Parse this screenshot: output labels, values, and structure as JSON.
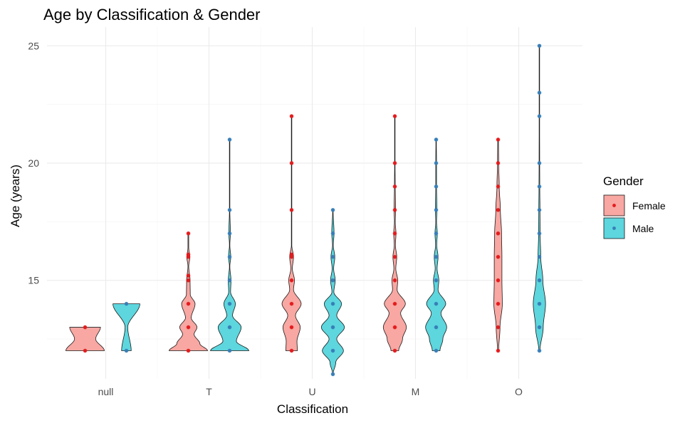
{
  "chart_data": {
    "type": "violin",
    "title": "Age by Classification & Gender",
    "xlabel": "Classification",
    "ylabel": "Age (years)",
    "categories": [
      "null",
      "T",
      "U",
      "M",
      "O"
    ],
    "y_ticks": [
      15,
      20,
      25
    ],
    "ylim": [
      10.8,
      25.8
    ],
    "grid": true,
    "legend": {
      "title": "Gender",
      "position": "right",
      "entries": [
        {
          "name": "Female",
          "fill": "#F8A7A2",
          "point": "#E41A1C"
        },
        {
          "name": "Male",
          "fill": "#5DD6DE",
          "point": "#377EB8"
        }
      ]
    },
    "series": [
      {
        "name": "Female",
        "groups": [
          {
            "category": "null",
            "ages": [
              12,
              13
            ],
            "density": [
              [
                12,
                1.0
              ],
              [
                12.5,
                0.55
              ],
              [
                13,
                0.8
              ]
            ]
          },
          {
            "category": "T",
            "ages": [
              12,
              13,
              14,
              15,
              15.2,
              16,
              16.1,
              17
            ],
            "density": [
              [
                12,
                1.0
              ],
              [
                12.3,
                0.6
              ],
              [
                12.7,
                0.3
              ],
              [
                13,
                0.45
              ],
              [
                13.4,
                0.15
              ],
              [
                14,
                0.35
              ],
              [
                14.4,
                0.1
              ],
              [
                15,
                0.09
              ],
              [
                15.6,
                0.02
              ],
              [
                16,
                0.08
              ],
              [
                16.4,
                0.02
              ],
              [
                17,
                0.02
              ]
            ]
          },
          {
            "category": "U",
            "ages": [
              12,
              13,
              14,
              15,
              16,
              16.1,
              18,
              20,
              22
            ],
            "density": [
              [
                12,
                0.3
              ],
              [
                12.4,
                0.28
              ],
              [
                13,
                0.45
              ],
              [
                13.5,
                0.2
              ],
              [
                14,
                0.5
              ],
              [
                14.6,
                0.1
              ],
              [
                15,
                0.15
              ],
              [
                15.5,
                0.04
              ],
              [
                16,
                0.1
              ],
              [
                16.5,
                0.01
              ],
              [
                18,
                0.01
              ],
              [
                20,
                0.01
              ],
              [
                22,
                0.01
              ]
            ]
          },
          {
            "category": "M",
            "ages": [
              12,
              13,
              14,
              15,
              16,
              17,
              18,
              19,
              20,
              22
            ],
            "density": [
              [
                12,
                0.2
              ],
              [
                12.5,
                0.4
              ],
              [
                13,
                0.6
              ],
              [
                13.6,
                0.3
              ],
              [
                14,
                0.55
              ],
              [
                14.6,
                0.12
              ],
              [
                15,
                0.15
              ],
              [
                15.5,
                0.05
              ],
              [
                16,
                0.1
              ],
              [
                16.5,
                0.03
              ],
              [
                17,
                0.06
              ],
              [
                17.5,
                0.02
              ],
              [
                18,
                0.04
              ],
              [
                19,
                0.02
              ],
              [
                20,
                0.01
              ],
              [
                22,
                0.01
              ]
            ]
          },
          {
            "category": "O",
            "ages": [
              12,
              13,
              14,
              15,
              16,
              17,
              18,
              19,
              20,
              21
            ],
            "density": [
              [
                12,
                0.03
              ],
              [
                13,
                0.1
              ],
              [
                14,
                0.22
              ],
              [
                15,
                0.2
              ],
              [
                16,
                0.2
              ],
              [
                17,
                0.18
              ],
              [
                18,
                0.12
              ],
              [
                19,
                0.06
              ],
              [
                20,
                0.03
              ],
              [
                21,
                0.02
              ]
            ]
          }
        ]
      },
      {
        "name": "Male",
        "groups": [
          {
            "category": "null",
            "ages": [
              12,
              14
            ],
            "density": [
              [
                12,
                0.25
              ],
              [
                13,
                0.07
              ],
              [
                14,
                0.7
              ]
            ]
          },
          {
            "category": "T",
            "ages": [
              12,
              13,
              14,
              15,
              16,
              17,
              18,
              21
            ],
            "density": [
              [
                12,
                1.0
              ],
              [
                12.4,
                0.35
              ],
              [
                13,
                0.6
              ],
              [
                13.5,
                0.15
              ],
              [
                14,
                0.3
              ],
              [
                14.5,
                0.05
              ],
              [
                15,
                0.07
              ],
              [
                15.6,
                0.01
              ],
              [
                16,
                0.06
              ],
              [
                16.5,
                0.01
              ],
              [
                17,
                0.04
              ],
              [
                18,
                0.01
              ],
              [
                21,
                0.01
              ]
            ]
          },
          {
            "category": "U",
            "ages": [
              11,
              12,
              13,
              14,
              15,
              16,
              17,
              18
            ],
            "density": [
              [
                11,
                0.01
              ],
              [
                11.5,
                0.15
              ],
              [
                12,
                0.55
              ],
              [
                12.5,
                0.2
              ],
              [
                13,
                0.6
              ],
              [
                13.5,
                0.2
              ],
              [
                14,
                0.45
              ],
              [
                14.5,
                0.05
              ],
              [
                15,
                0.12
              ],
              [
                15.5,
                0.04
              ],
              [
                16,
                0.1
              ],
              [
                16.5,
                0.02
              ],
              [
                17,
                0.06
              ],
              [
                18,
                0.01
              ]
            ]
          },
          {
            "category": "M",
            "ages": [
              12,
              13,
              14,
              15,
              16,
              17,
              18,
              19,
              20,
              21
            ],
            "density": [
              [
                12,
                0.2
              ],
              [
                12.5,
                0.35
              ],
              [
                13,
                0.55
              ],
              [
                13.6,
                0.25
              ],
              [
                14,
                0.5
              ],
              [
                14.6,
                0.1
              ],
              [
                15,
                0.14
              ],
              [
                15.5,
                0.05
              ],
              [
                16,
                0.1
              ],
              [
                16.5,
                0.03
              ],
              [
                17,
                0.06
              ],
              [
                17.5,
                0.02
              ],
              [
                18,
                0.04
              ],
              [
                19,
                0.02
              ],
              [
                20,
                0.02
              ],
              [
                21,
                0.01
              ]
            ]
          },
          {
            "category": "O",
            "ages": [
              12,
              13,
              14,
              15,
              16,
              17,
              18,
              19,
              20,
              22,
              23,
              25
            ],
            "density": [
              [
                12,
                0.03
              ],
              [
                13,
                0.2
              ],
              [
                14,
                0.32
              ],
              [
                15,
                0.18
              ],
              [
                16,
                0.07
              ],
              [
                17,
                0.04
              ],
              [
                18,
                0.03
              ],
              [
                19,
                0.02
              ],
              [
                20,
                0.015
              ],
              [
                22,
                0.01
              ],
              [
                23,
                0.01
              ],
              [
                25,
                0.005
              ]
            ]
          }
        ]
      }
    ]
  }
}
